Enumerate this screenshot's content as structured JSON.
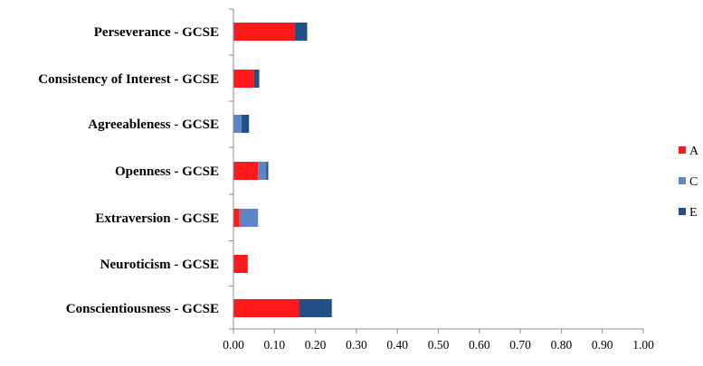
{
  "chart_data": {
    "type": "bar",
    "orientation": "horizontal",
    "stacked": true,
    "categories": [
      "Perseverance - GCSE",
      "Consistency of Interest - GCSE",
      "Agreeableness - GCSE",
      "Openness - GCSE",
      "Extraversion - GCSE",
      "Neuroticism - GCSE",
      "Conscientiousness  - GCSE"
    ],
    "series": [
      {
        "name": "A",
        "color": "#ff1a1a",
        "values": [
          0.15,
          0.05,
          0.0,
          0.06,
          0.015,
          0.035,
          0.16
        ]
      },
      {
        "name": "C",
        "color": "#5a86c8",
        "values": [
          0.0,
          0.0,
          0.02,
          0.02,
          0.045,
          0.0,
          0.0
        ]
      },
      {
        "name": "E",
        "color": "#224f85",
        "values": [
          0.03,
          0.013,
          0.018,
          0.005,
          0.0,
          0.0,
          0.08
        ]
      }
    ],
    "xlim": [
      0.0,
      1.0
    ],
    "xticks": [
      "0.00",
      "0.10",
      "0.20",
      "0.30",
      "0.40",
      "0.50",
      "0.60",
      "0.70",
      "0.80",
      "0.90",
      "1.00"
    ],
    "grid": false,
    "legend_position": "right"
  }
}
